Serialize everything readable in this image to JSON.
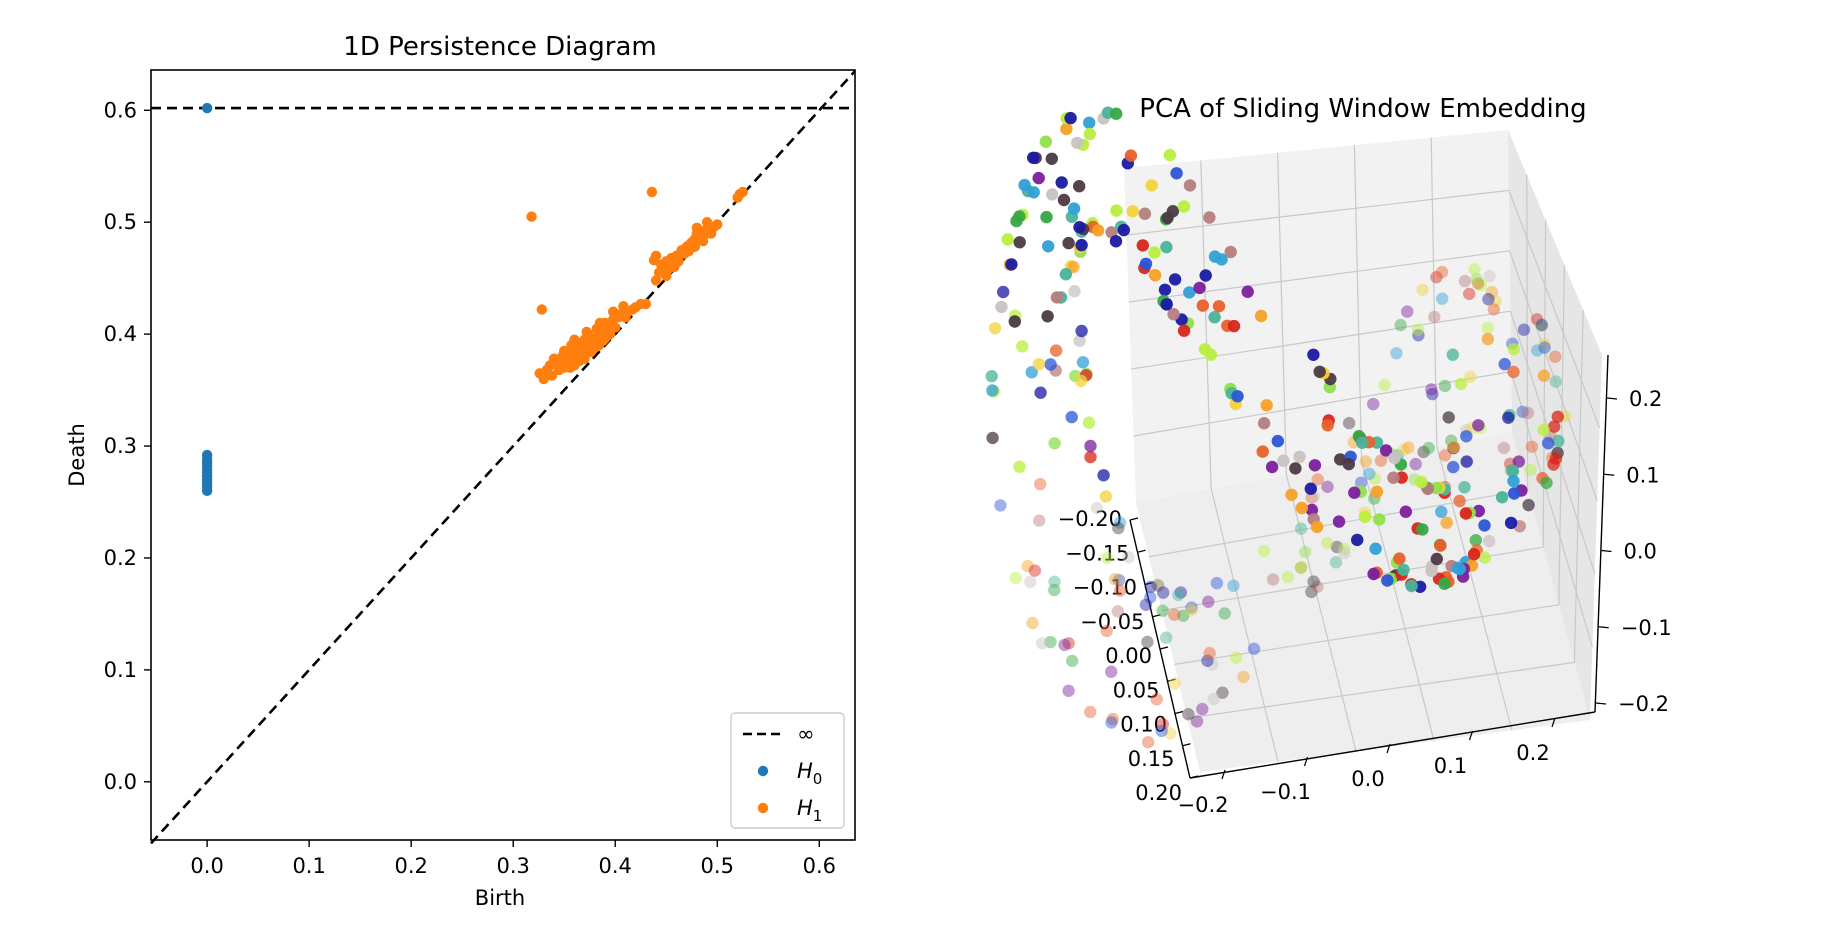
{
  "chart_data": [
    {
      "type": "scatter",
      "title": "1D Persistence Diagram",
      "xlabel": "Birth",
      "ylabel": "Death",
      "xlim": [
        -0.055,
        0.635
      ],
      "ylim": [
        -0.052,
        0.636
      ],
      "xticks": [
        0.0,
        0.1,
        0.2,
        0.3,
        0.4,
        0.5,
        0.6
      ],
      "yticks": [
        0.0,
        0.1,
        0.2,
        0.3,
        0.4,
        0.5,
        0.6
      ],
      "xtick_labels": [
        "0.0",
        "0.1",
        "0.2",
        "0.3",
        "0.4",
        "0.5",
        "0.6"
      ],
      "ytick_labels": [
        "0.0",
        "0.1",
        "0.2",
        "0.3",
        "0.4",
        "0.5",
        "0.6"
      ],
      "grid": false,
      "legend_position": "bottom-right",
      "infinity_line": {
        "label": "∞",
        "y": 0.602
      },
      "diagonal": {
        "from": [
          -0.055,
          -0.055
        ],
        "to": [
          0.635,
          0.635
        ]
      },
      "colors": {
        "H0": "#1f77b4",
        "H1": "#ff7f0e"
      },
      "legend": [
        {
          "label": "∞",
          "kind": "dashed-line"
        },
        {
          "label": "H",
          "sub": "0",
          "kind": "point",
          "color": "#1f77b4"
        },
        {
          "label": "H",
          "sub": "1",
          "kind": "point",
          "color": "#ff7f0e"
        }
      ],
      "series": [
        {
          "name": "H0",
          "points": [
            [
              0.0,
              0.602
            ],
            [
              0.0,
              0.292
            ],
            [
              0.0,
              0.288
            ],
            [
              0.0,
              0.285
            ],
            [
              0.0,
              0.282
            ],
            [
              0.0,
              0.279
            ],
            [
              0.0,
              0.276
            ],
            [
              0.0,
              0.273
            ],
            [
              0.0,
              0.27
            ],
            [
              0.0,
              0.267
            ],
            [
              0.0,
              0.264
            ],
            [
              0.0,
              0.26
            ]
          ]
        },
        {
          "name": "H1",
          "points": [
            [
              0.318,
              0.505
            ],
            [
              0.436,
              0.527
            ],
            [
              0.328,
              0.422
            ],
            [
              0.525,
              0.527
            ],
            [
              0.52,
              0.522
            ],
            [
              0.522,
              0.525
            ],
            [
              0.326,
              0.365
            ],
            [
              0.33,
              0.36
            ],
            [
              0.333,
              0.368
            ],
            [
              0.336,
              0.372
            ],
            [
              0.34,
              0.378
            ],
            [
              0.343,
              0.374
            ],
            [
              0.345,
              0.368
            ],
            [
              0.348,
              0.38
            ],
            [
              0.35,
              0.385
            ],
            [
              0.352,
              0.375
            ],
            [
              0.355,
              0.383
            ],
            [
              0.357,
              0.39
            ],
            [
              0.36,
              0.378
            ],
            [
              0.362,
              0.385
            ],
            [
              0.365,
              0.392
            ],
            [
              0.367,
              0.383
            ],
            [
              0.37,
              0.395
            ],
            [
              0.372,
              0.388
            ],
            [
              0.374,
              0.4
            ],
            [
              0.377,
              0.392
            ],
            [
              0.38,
              0.396
            ],
            [
              0.382,
              0.405
            ],
            [
              0.385,
              0.398
            ],
            [
              0.387,
              0.403
            ],
            [
              0.39,
              0.41
            ],
            [
              0.392,
              0.401
            ],
            [
              0.395,
              0.408
            ],
            [
              0.398,
              0.413
            ],
            [
              0.4,
              0.406
            ],
            [
              0.403,
              0.415
            ],
            [
              0.406,
              0.418
            ],
            [
              0.41,
              0.415
            ],
            [
              0.413,
              0.42
            ],
            [
              0.417,
              0.422
            ],
            [
              0.42,
              0.424
            ],
            [
              0.425,
              0.427
            ],
            [
              0.43,
              0.427
            ],
            [
              0.368,
              0.385
            ],
            [
              0.371,
              0.382
            ],
            [
              0.38,
              0.388
            ],
            [
              0.384,
              0.39
            ],
            [
              0.356,
              0.37
            ],
            [
              0.338,
              0.363
            ],
            [
              0.365,
              0.376
            ],
            [
              0.376,
              0.384
            ],
            [
              0.388,
              0.394
            ],
            [
              0.395,
              0.4
            ],
            [
              0.36,
              0.372
            ],
            [
              0.37,
              0.378
            ],
            [
              0.378,
              0.39
            ],
            [
              0.39,
              0.396
            ],
            [
              0.345,
              0.376
            ],
            [
              0.35,
              0.37
            ],
            [
              0.385,
              0.41
            ],
            [
              0.372,
              0.402
            ],
            [
              0.36,
              0.395
            ],
            [
              0.398,
              0.42
            ],
            [
              0.408,
              0.425
            ],
            [
              0.44,
              0.448
            ],
            [
              0.443,
              0.455
            ],
            [
              0.445,
              0.462
            ],
            [
              0.45,
              0.465
            ],
            [
              0.452,
              0.458
            ],
            [
              0.455,
              0.468
            ],
            [
              0.46,
              0.47
            ],
            [
              0.462,
              0.465
            ],
            [
              0.465,
              0.475
            ],
            [
              0.468,
              0.472
            ],
            [
              0.47,
              0.478
            ],
            [
              0.473,
              0.48
            ],
            [
              0.475,
              0.482
            ],
            [
              0.478,
              0.485
            ],
            [
              0.48,
              0.49
            ],
            [
              0.482,
              0.486
            ],
            [
              0.485,
              0.492
            ],
            [
              0.487,
              0.488
            ],
            [
              0.49,
              0.494
            ],
            [
              0.492,
              0.497
            ],
            [
              0.494,
              0.49
            ],
            [
              0.497,
              0.496
            ],
            [
              0.5,
              0.498
            ],
            [
              0.472,
              0.474
            ],
            [
              0.478,
              0.478
            ],
            [
              0.486,
              0.483
            ],
            [
              0.458,
              0.46
            ],
            [
              0.45,
              0.452
            ],
            [
              0.438,
              0.466
            ],
            [
              0.44,
              0.47
            ],
            [
              0.48,
              0.495
            ],
            [
              0.49,
              0.5
            ]
          ]
        }
      ]
    },
    {
      "type": "scatter",
      "subtype": "3d",
      "title": "PCA of Sliding Window Embedding",
      "grid": true,
      "xlim": [
        -0.2,
        0.2
      ],
      "ylim": [
        -0.25,
        0.25
      ],
      "zlim": [
        -0.25,
        0.25
      ],
      "xtick_labels": [
        "−0.20",
        "−0.15",
        "−0.10",
        "−0.05",
        "0.00",
        "0.05",
        "0.10",
        "0.15",
        "0.20"
      ],
      "ytick_labels": [
        "−0.2",
        "−0.1",
        "0.0",
        "0.1",
        "0.2"
      ],
      "ztick_labels": [
        "−0.2",
        "−0.1",
        "0.0",
        "0.1",
        "0.2"
      ],
      "color_palette": [
        "#1a1aa3",
        "#2a55d6",
        "#31a0d6",
        "#4ab39a",
        "#36a843",
        "#8fe04d",
        "#b8ef3f",
        "#f2d23b",
        "#f5a025",
        "#e8602a",
        "#d8261b",
        "#7a1f9c",
        "#b57d7d",
        "#4a3a45",
        "#c9c2c2"
      ]
    }
  ]
}
